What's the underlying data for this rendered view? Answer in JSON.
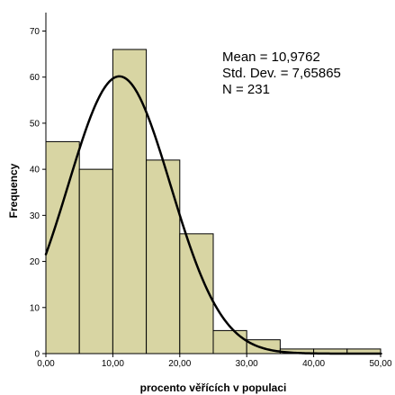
{
  "chart_data": {
    "type": "histogram",
    "title": "",
    "xlabel": "procento věřících v populaci",
    "ylabel": "Frequency",
    "xlim": [
      0,
      50
    ],
    "ylim": [
      0,
      70
    ],
    "grid": false,
    "bar_color": "#d8d5a3",
    "bar_edge_color": "#000000",
    "curve_color": "#000000",
    "bins": [
      {
        "x0": 0,
        "x1": 5,
        "count": 46
      },
      {
        "x0": 5,
        "x1": 10,
        "count": 40
      },
      {
        "x0": 10,
        "x1": 15,
        "count": 66
      },
      {
        "x0": 15,
        "x1": 20,
        "count": 42
      },
      {
        "x0": 20,
        "x1": 25,
        "count": 26
      },
      {
        "x0": 25,
        "x1": 30,
        "count": 5
      },
      {
        "x0": 30,
        "x1": 35,
        "count": 3
      },
      {
        "x0": 35,
        "x1": 40,
        "count": 1
      },
      {
        "x0": 40,
        "x1": 45,
        "count": 1
      },
      {
        "x0": 45,
        "x1": 50,
        "count": 1
      }
    ],
    "normal_curve": {
      "mean": 10.9762,
      "sd": 7.65865,
      "n": 231,
      "bin_width": 5
    },
    "x_ticks": [
      0,
      10,
      20,
      30,
      40,
      50
    ],
    "x_tick_labels": [
      "0,00",
      "10,00",
      "20,00",
      "30,00",
      "40,00",
      "50,00"
    ],
    "y_ticks": [
      0,
      10,
      20,
      30,
      40,
      50,
      60,
      70
    ],
    "y_tick_labels": [
      "0",
      "10",
      "20",
      "30",
      "40",
      "50",
      "60",
      "70"
    ],
    "stats_lines": [
      "Mean = 10,9762",
      "Std. Dev. = 7,65865",
      "N = 231"
    ]
  }
}
